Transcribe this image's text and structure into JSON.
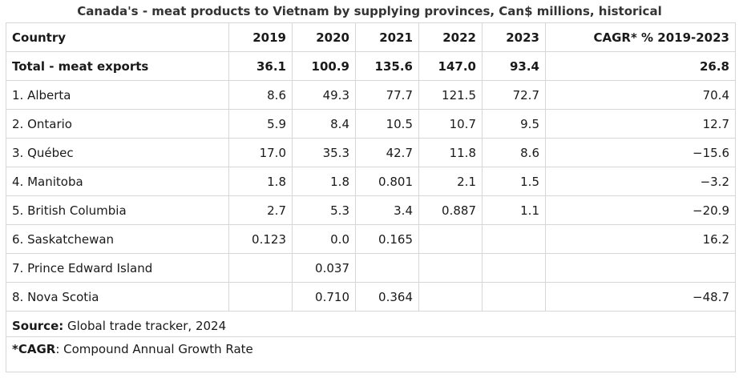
{
  "title": "Canada's - meat products to Vietnam by supplying provinces, Can$ millions, historical",
  "columns": [
    "Country",
    "2019",
    "2020",
    "2021",
    "2022",
    "2023",
    "CAGR* % 2019-2023"
  ],
  "total": {
    "label": "Total - meat exports",
    "values": [
      "36.1",
      "100.9",
      "135.6",
      "147.0",
      "93.4",
      "26.8"
    ]
  },
  "rows": [
    {
      "label": "1. Alberta",
      "values": [
        "8.6",
        "49.3",
        "77.7",
        "121.5",
        "72.7",
        "70.4"
      ]
    },
    {
      "label": "2. Ontario",
      "values": [
        "5.9",
        "8.4",
        "10.5",
        "10.7",
        "9.5",
        "12.7"
      ]
    },
    {
      "label": "3. Québec",
      "values": [
        "17.0",
        "35.3",
        "42.7",
        "11.8",
        "8.6",
        "−15.6"
      ]
    },
    {
      "label": "4. Manitoba",
      "values": [
        "1.8",
        "1.8",
        "0.801",
        "2.1",
        "1.5",
        "−3.2"
      ]
    },
    {
      "label": "5. British Columbia",
      "values": [
        "2.7",
        "5.3",
        "3.4",
        "0.887",
        "1.1",
        "−20.9"
      ]
    },
    {
      "label": "6. Saskatchewan",
      "values": [
        "0.123",
        "0.0",
        "0.165",
        "",
        "",
        "16.2"
      ]
    },
    {
      "label": "7. Prince Edward Island",
      "values": [
        "",
        "0.037",
        "",
        "",
        "",
        ""
      ]
    },
    {
      "label": "8. Nova Scotia",
      "values": [
        "",
        "0.710",
        "0.364",
        "",
        "",
        "−48.7"
      ]
    }
  ],
  "notes": {
    "source_label": "Source:",
    "source_text": " Global trade tracker, 2024",
    "cagr_label": "*CAGR",
    "cagr_text": ": Compound Annual Growth Rate"
  }
}
